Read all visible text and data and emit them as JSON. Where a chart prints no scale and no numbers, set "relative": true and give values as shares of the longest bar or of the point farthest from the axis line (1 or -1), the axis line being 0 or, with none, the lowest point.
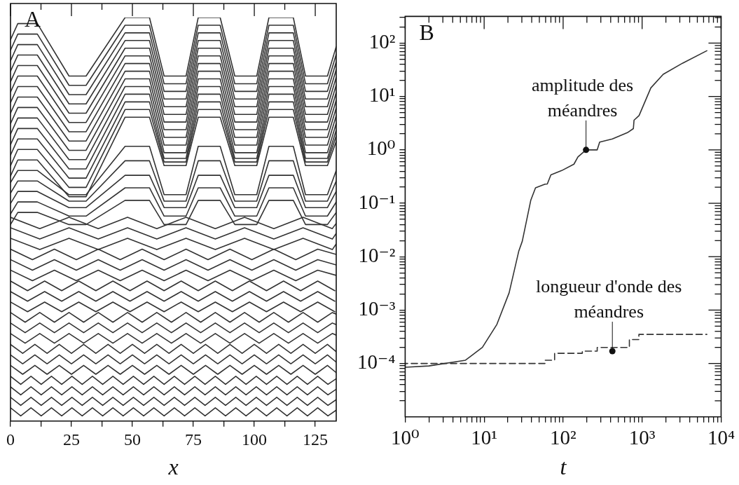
{
  "chart_data": [
    {
      "type": "line",
      "title": "A",
      "xlabel": "x",
      "relative": true,
      "tick_labels": "x",
      "color": "#333333",
      "xlim": [
        0,
        133.6
      ],
      "xticks": [
        0,
        {
          "value": 12.5,
          "label": null
        },
        25,
        {
          "value": 37.5,
          "label": null
        },
        50,
        {
          "value": 62.5,
          "label": null
        },
        75,
        {
          "value": 87.5,
          "label": null
        },
        100,
        {
          "value": 112.5,
          "label": null
        },
        125
      ],
      "x": [
        0,
        3,
        11,
        24,
        31,
        47,
        57,
        63,
        72,
        77,
        86,
        92,
        101,
        106,
        116,
        121,
        130,
        133.6
      ],
      "series": [
        {
          "values": [
            0.945,
            0.985,
            0.985,
            0.855,
            0.855,
            1,
            1,
            0.855,
            0.855,
            1,
            1,
            0.855,
            0.855,
            1,
            1,
            0.855,
            0.855,
            0.928
          ]
        },
        {
          "values": [
            0.919,
            0.959,
            0.959,
            0.832,
            0.832,
            0.981,
            0.981,
            0.836,
            0.836,
            0.981,
            0.981,
            0.836,
            0.836,
            0.981,
            0.981,
            0.836,
            0.836,
            0.909
          ]
        },
        {
          "values": [
            0.893,
            0.933,
            0.933,
            0.809,
            0.809,
            0.962,
            0.962,
            0.817,
            0.817,
            0.962,
            0.962,
            0.817,
            0.817,
            0.962,
            0.962,
            0.817,
            0.817,
            0.89
          ]
        },
        {
          "values": [
            0.867,
            0.907,
            0.907,
            0.786,
            0.786,
            0.943,
            0.943,
            0.798,
            0.798,
            0.943,
            0.943,
            0.798,
            0.798,
            0.943,
            0.943,
            0.798,
            0.798,
            0.871
          ]
        },
        {
          "values": [
            0.841,
            0.881,
            0.881,
            0.763,
            0.763,
            0.924,
            0.924,
            0.779,
            0.779,
            0.924,
            0.924,
            0.779,
            0.779,
            0.924,
            0.924,
            0.779,
            0.779,
            0.852
          ]
        },
        {
          "values": [
            0.815,
            0.855,
            0.855,
            0.74,
            0.74,
            0.905,
            0.905,
            0.76,
            0.76,
            0.905,
            0.905,
            0.76,
            0.76,
            0.905,
            0.905,
            0.76,
            0.76,
            0.833
          ]
        },
        {
          "values": [
            0.789,
            0.829,
            0.829,
            0.717,
            0.717,
            0.886,
            0.886,
            0.741,
            0.741,
            0.886,
            0.886,
            0.741,
            0.741,
            0.886,
            0.886,
            0.741,
            0.741,
            0.814
          ]
        },
        {
          "values": [
            0.763,
            0.803,
            0.803,
            0.694,
            0.694,
            0.867,
            0.867,
            0.722,
            0.722,
            0.867,
            0.867,
            0.722,
            0.722,
            0.867,
            0.867,
            0.722,
            0.722,
            0.795
          ]
        },
        {
          "values": [
            0.737,
            0.777,
            0.777,
            0.671,
            0.671,
            0.848,
            0.848,
            0.703,
            0.703,
            0.848,
            0.848,
            0.703,
            0.703,
            0.848,
            0.848,
            0.703,
            0.703,
            0.776
          ]
        },
        {
          "values": [
            0.711,
            0.751,
            0.751,
            0.648,
            0.648,
            0.829,
            0.829,
            0.684,
            0.684,
            0.829,
            0.829,
            0.684,
            0.684,
            0.829,
            0.829,
            0.684,
            0.684,
            0.757
          ]
        },
        {
          "values": [
            0.685,
            0.725,
            0.725,
            0.625,
            0.625,
            0.81,
            0.81,
            0.665,
            0.665,
            0.81,
            0.81,
            0.665,
            0.665,
            0.81,
            0.81,
            0.665,
            0.665,
            0.738
          ]
        },
        {
          "values": [
            0.659,
            0.699,
            0.699,
            0.602,
            0.602,
            0.791,
            0.791,
            0.651,
            0.651,
            0.791,
            0.791,
            0.651,
            0.651,
            0.791,
            0.791,
            0.651,
            0.651,
            0.721
          ]
        },
        {
          "values": [
            0.633,
            0.673,
            0.673,
            0.579,
            0.579,
            0.772,
            0.772,
            0.642,
            0.642,
            0.772,
            0.772,
            0.642,
            0.642,
            0.772,
            0.772,
            0.642,
            0.642,
            0.707
          ]
        },
        {
          "values": [
            0.607,
            0.647,
            0.647,
            0.556,
            0.556,
            0.753,
            0.753,
            0.633,
            0.633,
            0.753,
            0.753,
            0.633,
            0.633,
            0.753,
            0.753,
            0.633,
            0.633,
            0.693
          ]
        },
        {
          "values": [
            0.591,
            0.621,
            0.621,
            0.561,
            0.561,
            0.681,
            0.681,
            0.561,
            0.561,
            0.681,
            0.681,
            0.561,
            0.561,
            0.681,
            0.681,
            0.561,
            0.561,
            0.621
          ]
        },
        {
          "values": [
            0.565,
            0.595,
            0.595,
            0.545,
            0.545,
            0.645,
            0.645,
            0.545,
            0.545,
            0.645,
            0.645,
            0.545,
            0.545,
            0.645,
            0.645,
            0.545,
            0.545,
            0.595
          ]
        },
        {
          "values": [
            0.539,
            0.569,
            0.569,
            0.529,
            0.529,
            0.609,
            0.609,
            0.529,
            0.529,
            0.609,
            0.609,
            0.529,
            0.529,
            0.609,
            0.609,
            0.529,
            0.529,
            0.569
          ]
        },
        {
          "values": [
            0.513,
            0.543,
            0.543,
            0.508,
            0.508,
            0.578,
            0.578,
            0.508,
            0.508,
            0.578,
            0.578,
            0.508,
            0.508,
            0.578,
            0.578,
            0.508,
            0.508,
            0.543
          ]
        },
        {
          "values": [
            0.487,
            0.517,
            0.517,
            0.487,
            0.487,
            0.547,
            0.547,
            0.487,
            0.487,
            0.547,
            0.547,
            0.487,
            0.487,
            0.547,
            0.547,
            0.487,
            0.487,
            0.517
          ]
        },
        {
          "x": [
            0,
            12,
            24,
            36,
            48,
            60,
            72,
            84,
            96,
            108,
            120,
            132,
            133.6
          ],
          "values": [
            0.505,
            0.477,
            0.505,
            0.477,
            0.505,
            0.477,
            0.505,
            0.477,
            0.505,
            0.477,
            0.505,
            0.477,
            0.49
          ]
        },
        {
          "x": [
            0,
            12,
            24,
            36,
            48,
            60,
            72,
            84,
            96,
            108,
            120,
            132,
            133.6
          ],
          "values": [
            0.479,
            0.451,
            0.479,
            0.451,
            0.479,
            0.451,
            0.479,
            0.451,
            0.479,
            0.451,
            0.479,
            0.451,
            0.465
          ]
        },
        {
          "x": [
            0,
            12,
            24,
            36,
            48,
            60,
            72,
            84,
            96,
            108,
            120,
            132,
            133.6
          ],
          "values": [
            0.453,
            0.425,
            0.453,
            0.425,
            0.453,
            0.425,
            0.453,
            0.425,
            0.453,
            0.425,
            0.453,
            0.425,
            0.439
          ]
        },
        {
          "x": [
            0,
            9,
            18,
            27,
            36,
            45,
            54,
            63,
            72,
            81,
            90,
            99,
            108,
            117,
            126,
            133.6
          ],
          "values": [
            0.426,
            0.4,
            0.426,
            0.4,
            0.426,
            0.4,
            0.426,
            0.4,
            0.426,
            0.4,
            0.426,
            0.4,
            0.426,
            0.4,
            0.426,
            0.413
          ]
        },
        {
          "x": [
            0,
            9,
            18,
            27,
            36,
            45,
            54,
            63,
            72,
            81,
            90,
            99,
            108,
            117,
            126,
            133.6
          ],
          "values": [
            0.4,
            0.374,
            0.4,
            0.374,
            0.4,
            0.374,
            0.4,
            0.374,
            0.4,
            0.374,
            0.4,
            0.374,
            0.4,
            0.374,
            0.4,
            0.387
          ]
        },
        {
          "x": [
            0,
            9,
            18,
            27,
            36,
            45,
            54,
            63,
            72,
            81,
            90,
            99,
            108,
            117,
            126,
            133.6
          ],
          "values": [
            0.374,
            0.348,
            0.374,
            0.348,
            0.374,
            0.348,
            0.374,
            0.348,
            0.374,
            0.348,
            0.374,
            0.348,
            0.374,
            0.348,
            0.374,
            0.361
          ]
        },
        {
          "x": [
            0,
            7,
            14,
            21,
            28,
            35,
            42,
            49,
            56,
            63,
            70,
            77,
            84,
            91,
            98,
            105,
            112,
            119,
            126,
            133
          ],
          "values": [
            0.347,
            0.323,
            0.347,
            0.323,
            0.347,
            0.323,
            0.347,
            0.323,
            0.347,
            0.323,
            0.347,
            0.323,
            0.347,
            0.323,
            0.347,
            0.323,
            0.347,
            0.323,
            0.347,
            0.323
          ]
        },
        {
          "x": [
            0,
            7,
            14,
            21,
            28,
            35,
            42,
            49,
            56,
            63,
            70,
            77,
            84,
            91,
            98,
            105,
            112,
            119,
            126,
            133
          ],
          "values": [
            0.321,
            0.297,
            0.321,
            0.297,
            0.321,
            0.297,
            0.321,
            0.297,
            0.321,
            0.297,
            0.321,
            0.297,
            0.321,
            0.297,
            0.321,
            0.297,
            0.321,
            0.297,
            0.321,
            0.297
          ]
        },
        {
          "x": [
            0,
            7,
            14,
            21,
            28,
            35,
            42,
            49,
            56,
            63,
            70,
            77,
            84,
            91,
            98,
            105,
            112,
            119,
            126,
            133
          ],
          "values": [
            0.295,
            0.271,
            0.295,
            0.271,
            0.295,
            0.271,
            0.295,
            0.271,
            0.295,
            0.271,
            0.295,
            0.271,
            0.295,
            0.271,
            0.295,
            0.271,
            0.295,
            0.271,
            0.295,
            0.271
          ]
        },
        {
          "x": [
            0,
            6,
            12,
            18,
            24,
            30,
            36,
            42,
            48,
            54,
            60,
            66,
            72,
            78,
            84,
            90,
            96,
            102,
            108,
            114,
            120,
            126,
            132,
            133.6
          ],
          "values": [
            0.269,
            0.245,
            0.269,
            0.245,
            0.269,
            0.245,
            0.269,
            0.245,
            0.269,
            0.245,
            0.269,
            0.245,
            0.269,
            0.245,
            0.269,
            0.245,
            0.269,
            0.245,
            0.269,
            0.245,
            0.269,
            0.245,
            0.269,
            0.265
          ]
        },
        {
          "x": [
            0,
            6,
            12,
            18,
            24,
            30,
            36,
            42,
            48,
            54,
            60,
            66,
            72,
            78,
            84,
            90,
            96,
            102,
            108,
            114,
            120,
            126,
            132,
            133.6
          ],
          "values": [
            0.243,
            0.219,
            0.243,
            0.219,
            0.243,
            0.219,
            0.243,
            0.219,
            0.243,
            0.219,
            0.243,
            0.219,
            0.243,
            0.219,
            0.243,
            0.219,
            0.243,
            0.219,
            0.243,
            0.219,
            0.243,
            0.219,
            0.243,
            0.239
          ]
        },
        {
          "x": [
            0,
            6,
            12,
            18,
            24,
            30,
            36,
            42,
            48,
            54,
            60,
            66,
            72,
            78,
            84,
            90,
            96,
            102,
            108,
            114,
            120,
            126,
            132,
            133.6
          ],
          "values": [
            0.217,
            0.193,
            0.217,
            0.193,
            0.217,
            0.193,
            0.217,
            0.193,
            0.217,
            0.193,
            0.217,
            0.193,
            0.217,
            0.193,
            0.217,
            0.193,
            0.217,
            0.193,
            0.217,
            0.193,
            0.217,
            0.193,
            0.217,
            0.213
          ]
        },
        {
          "x": [
            0,
            5,
            10,
            15,
            20,
            25,
            30,
            35,
            40,
            45,
            50,
            55,
            60,
            65,
            70,
            75,
            80,
            85,
            90,
            95,
            100,
            105,
            110,
            115,
            120,
            125,
            130,
            133.6
          ],
          "values": [
            0.19,
            0.168,
            0.19,
            0.168,
            0.19,
            0.168,
            0.19,
            0.168,
            0.19,
            0.168,
            0.19,
            0.168,
            0.19,
            0.168,
            0.19,
            0.168,
            0.19,
            0.168,
            0.19,
            0.168,
            0.19,
            0.168,
            0.19,
            0.168,
            0.19,
            0.168,
            0.19,
            0.172
          ]
        },
        {
          "x": [
            0,
            5,
            10,
            15,
            20,
            25,
            30,
            35,
            40,
            45,
            50,
            55,
            60,
            65,
            70,
            75,
            80,
            85,
            90,
            95,
            100,
            105,
            110,
            115,
            120,
            125,
            130,
            133.6
          ],
          "values": [
            0.164,
            0.142,
            0.164,
            0.142,
            0.164,
            0.142,
            0.164,
            0.142,
            0.164,
            0.142,
            0.164,
            0.142,
            0.164,
            0.142,
            0.164,
            0.142,
            0.164,
            0.142,
            0.164,
            0.142,
            0.164,
            0.142,
            0.164,
            0.142,
            0.164,
            0.142,
            0.164,
            0.146
          ]
        },
        {
          "x": [
            0,
            5,
            10,
            15,
            20,
            25,
            30,
            35,
            40,
            45,
            50,
            55,
            60,
            65,
            70,
            75,
            80,
            85,
            90,
            95,
            100,
            105,
            110,
            115,
            120,
            125,
            130,
            133.6
          ],
          "values": [
            0.138,
            0.116,
            0.138,
            0.116,
            0.138,
            0.116,
            0.138,
            0.116,
            0.138,
            0.116,
            0.138,
            0.116,
            0.138,
            0.116,
            0.138,
            0.116,
            0.138,
            0.116,
            0.138,
            0.116,
            0.138,
            0.116,
            0.138,
            0.116,
            0.138,
            0.116,
            0.138,
            0.12
          ]
        },
        {
          "x": [
            0,
            4.2,
            8.4,
            12.6,
            16.8,
            21,
            25.2,
            29.4,
            33.6,
            37.8,
            42,
            46.2,
            50.4,
            54.6,
            58.8,
            63,
            67.2,
            71.4,
            75.6,
            79.8,
            84,
            88.2,
            92.4,
            96.6,
            100.8,
            105,
            109.2,
            113.4,
            117.6,
            121.8,
            126,
            130.2,
            133.6
          ],
          "values": [
            0.111,
            0.091,
            0.111,
            0.091,
            0.111,
            0.091,
            0.111,
            0.091,
            0.111,
            0.091,
            0.111,
            0.091,
            0.111,
            0.091,
            0.111,
            0.091,
            0.111,
            0.091,
            0.111,
            0.091,
            0.111,
            0.091,
            0.111,
            0.091,
            0.111,
            0.091,
            0.111,
            0.091,
            0.111,
            0.091,
            0.111,
            0.091,
            0.105
          ]
        },
        {
          "x": [
            0,
            4.2,
            8.4,
            12.6,
            16.8,
            21,
            25.2,
            29.4,
            33.6,
            37.8,
            42,
            46.2,
            50.4,
            54.6,
            58.8,
            63,
            67.2,
            71.4,
            75.6,
            79.8,
            84,
            88.2,
            92.4,
            96.6,
            100.8,
            105,
            109.2,
            113.4,
            117.6,
            121.8,
            126,
            130.2,
            133.6
          ],
          "values": [
            0.085,
            0.065,
            0.085,
            0.065,
            0.085,
            0.065,
            0.085,
            0.065,
            0.085,
            0.065,
            0.085,
            0.065,
            0.085,
            0.065,
            0.085,
            0.065,
            0.085,
            0.065,
            0.085,
            0.065,
            0.085,
            0.065,
            0.085,
            0.065,
            0.085,
            0.065,
            0.085,
            0.065,
            0.085,
            0.065,
            0.085,
            0.065,
            0.079
          ]
        },
        {
          "x": [
            0,
            4.2,
            8.4,
            12.6,
            16.8,
            21,
            25.2,
            29.4,
            33.6,
            37.8,
            42,
            46.2,
            50.4,
            54.6,
            58.8,
            63,
            67.2,
            71.4,
            75.6,
            79.8,
            84,
            88.2,
            92.4,
            96.6,
            100.8,
            105,
            109.2,
            113.4,
            117.6,
            121.8,
            126,
            130.2,
            133.6
          ],
          "values": [
            0.059,
            0.039,
            0.059,
            0.039,
            0.059,
            0.039,
            0.059,
            0.039,
            0.059,
            0.039,
            0.059,
            0.039,
            0.059,
            0.039,
            0.059,
            0.039,
            0.059,
            0.039,
            0.059,
            0.039,
            0.059,
            0.039,
            0.059,
            0.039,
            0.059,
            0.039,
            0.059,
            0.039,
            0.059,
            0.039,
            0.059,
            0.039,
            0.053
          ]
        },
        {
          "x": [
            0,
            4.2,
            8.4,
            12.6,
            16.8,
            21,
            25.2,
            29.4,
            33.6,
            37.8,
            42,
            46.2,
            50.4,
            54.6,
            58.8,
            63,
            67.2,
            71.4,
            75.6,
            79.8,
            84,
            88.2,
            92.4,
            96.6,
            100.8,
            105,
            109.2,
            113.4,
            117.6,
            121.8,
            126,
            130.2,
            133.6
          ],
          "values": [
            0.033,
            0.013,
            0.033,
            0.013,
            0.033,
            0.013,
            0.033,
            0.013,
            0.033,
            0.013,
            0.033,
            0.013,
            0.033,
            0.013,
            0.033,
            0.013,
            0.033,
            0.013,
            0.033,
            0.013,
            0.033,
            0.013,
            0.033,
            0.013,
            0.033,
            0.013,
            0.033,
            0.013,
            0.033,
            0.013,
            0.033,
            0.013,
            0.027
          ]
        }
      ]
    },
    {
      "type": "line",
      "title": "B",
      "xlabel": "t",
      "log": "xy",
      "color": "#333333",
      "xlim": [
        1,
        10000
      ],
      "ylim": [
        1e-05,
        316
      ],
      "xticks": [
        {
          "value": 1,
          "label": "10⁰"
        },
        {
          "value": 2,
          "label": null
        },
        {
          "value": 3,
          "label": null
        },
        {
          "value": 4,
          "label": null
        },
        {
          "value": 5,
          "label": null
        },
        {
          "value": 6,
          "label": null
        },
        {
          "value": 7,
          "label": null
        },
        {
          "value": 8,
          "label": null
        },
        {
          "value": 9,
          "label": null
        },
        {
          "value": 10,
          "label": "10¹"
        },
        {
          "value": 20,
          "label": null
        },
        {
          "value": 30,
          "label": null
        },
        {
          "value": 40,
          "label": null
        },
        {
          "value": 50,
          "label": null
        },
        {
          "value": 60,
          "label": null
        },
        {
          "value": 70,
          "label": null
        },
        {
          "value": 80,
          "label": null
        },
        {
          "value": 90,
          "label": null
        },
        {
          "value": 100,
          "label": "10²"
        },
        {
          "value": 200,
          "label": null
        },
        {
          "value": 300,
          "label": null
        },
        {
          "value": 400,
          "label": null
        },
        {
          "value": 500,
          "label": null
        },
        {
          "value": 600,
          "label": null
        },
        {
          "value": 700,
          "label": null
        },
        {
          "value": 800,
          "label": null
        },
        {
          "value": 900,
          "label": null
        },
        {
          "value": 1000,
          "label": "10³"
        },
        {
          "value": 2000,
          "label": null
        },
        {
          "value": 3000,
          "label": null
        },
        {
          "value": 4000,
          "label": null
        },
        {
          "value": 5000,
          "label": null
        },
        {
          "value": 6000,
          "label": null
        },
        {
          "value": 7000,
          "label": null
        },
        {
          "value": 8000,
          "label": null
        },
        {
          "value": 9000,
          "label": null
        },
        {
          "value": 10000,
          "label": "10⁴"
        }
      ],
      "yticks": [
        {
          "value": 2e-05,
          "label": null
        },
        {
          "value": 3e-05,
          "label": null
        },
        {
          "value": 4e-05,
          "label": null
        },
        {
          "value": 5e-05,
          "label": null
        },
        {
          "value": 6e-05,
          "label": null
        },
        {
          "value": 7e-05,
          "label": null
        },
        {
          "value": 8e-05,
          "label": null
        },
        {
          "value": 9e-05,
          "label": null
        },
        {
          "value": 0.0001,
          "label": "10⁻⁴"
        },
        {
          "value": 0.0002,
          "label": null
        },
        {
          "value": 0.0003,
          "label": null
        },
        {
          "value": 0.0004,
          "label": null
        },
        {
          "value": 0.0005,
          "label": null
        },
        {
          "value": 0.0006,
          "label": null
        },
        {
          "value": 0.0007,
          "label": null
        },
        {
          "value": 0.0008,
          "label": null
        },
        {
          "value": 0.0009,
          "label": null
        },
        {
          "value": 0.001,
          "label": "10⁻³"
        },
        {
          "value": 0.002,
          "label": null
        },
        {
          "value": 0.003,
          "label": null
        },
        {
          "value": 0.004,
          "label": null
        },
        {
          "value": 0.005,
          "label": null
        },
        {
          "value": 0.006,
          "label": null
        },
        {
          "value": 0.007,
          "label": null
        },
        {
          "value": 0.008,
          "label": null
        },
        {
          "value": 0.009,
          "label": null
        },
        {
          "value": 0.01,
          "label": "10⁻²"
        },
        {
          "value": 0.02,
          "label": null
        },
        {
          "value": 0.03,
          "label": null
        },
        {
          "value": 0.04,
          "label": null
        },
        {
          "value": 0.05,
          "label": null
        },
        {
          "value": 0.06,
          "label": null
        },
        {
          "value": 0.07,
          "label": null
        },
        {
          "value": 0.08,
          "label": null
        },
        {
          "value": 0.09,
          "label": null
        },
        {
          "value": 0.1,
          "label": "10⁻¹"
        },
        {
          "value": 0.2,
          "label": null
        },
        {
          "value": 0.3,
          "label": null
        },
        {
          "value": 0.4,
          "label": null
        },
        {
          "value": 0.5,
          "label": null
        },
        {
          "value": 0.6,
          "label": null
        },
        {
          "value": 0.7,
          "label": null
        },
        {
          "value": 0.8,
          "label": null
        },
        {
          "value": 0.9,
          "label": null
        },
        {
          "value": 1,
          "label": "10⁰"
        },
        {
          "value": 2,
          "label": null
        },
        {
          "value": 3,
          "label": null
        },
        {
          "value": 4,
          "label": null
        },
        {
          "value": 5,
          "label": null
        },
        {
          "value": 6,
          "label": null
        },
        {
          "value": 7,
          "label": null
        },
        {
          "value": 8,
          "label": null
        },
        {
          "value": 9,
          "label": null
        },
        {
          "value": 10,
          "label": "10¹"
        },
        {
          "value": 20,
          "label": null
        },
        {
          "value": 30,
          "label": null
        },
        {
          "value": 40,
          "label": null
        },
        {
          "value": 50,
          "label": null
        },
        {
          "value": 60,
          "label": null
        },
        {
          "value": 70,
          "label": null
        },
        {
          "value": 80,
          "label": null
        },
        {
          "value": 90,
          "label": null
        },
        {
          "value": 100,
          "label": "10²"
        },
        {
          "value": 200,
          "label": null
        },
        {
          "value": 300,
          "label": null
        }
      ],
      "series": [
        {
          "x": [
            1,
            2,
            5.8,
            9.5,
            14.5,
            20.7,
            27.4,
            30.4,
            39,
            44.7,
            59,
            63,
            70,
            96,
            137,
            154,
            195,
            270,
            290,
            420,
            650,
            775,
            790,
            915,
            1290,
            1850,
            3250,
            6600
          ],
          "values": [
            8.5e-05,
            9e-05,
            0.000115,
            0.0002,
            0.00054,
            0.0021,
            0.0126,
            0.0195,
            0.115,
            0.195,
            0.228,
            0.23,
            0.34,
            0.41,
            0.54,
            0.74,
            1.0,
            1.0,
            1.4,
            1.6,
            2.1,
            2.5,
            3.6,
            4.4,
            14.5,
            26,
            42,
            72
          ]
        },
        {
          "type": "step",
          "line_style": "dashed",
          "x": [
            1,
            59,
            78,
            175,
            270,
            690,
            910,
            4600,
            6600
          ],
          "values": [
            8.5e-05,
            0.0001,
            0.000115,
            0.000155,
            0.00017,
            0.0002,
            0.00028,
            0.00035,
            0.00035
          ]
        }
      ],
      "annotations": [
        {
          "text": "amplitude des méandres",
          "x": 195,
          "y": 1.0
        },
        {
          "text": "longueur d'onde des méandres",
          "x": 420,
          "y": 0.00017
        }
      ]
    }
  ]
}
